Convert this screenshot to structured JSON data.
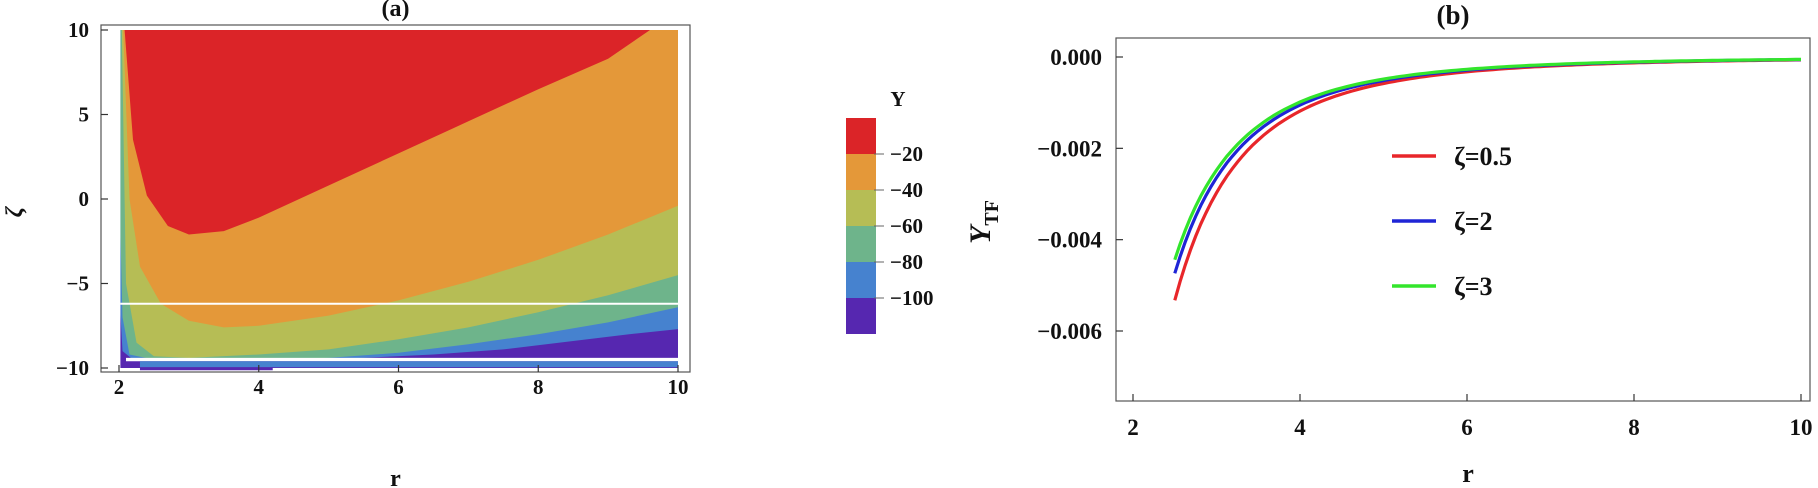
{
  "chart_data": [
    {
      "type": "contour",
      "title": "(a)",
      "xlabel": "r",
      "ylabel": "ζ",
      "xlim": [
        2,
        10
      ],
      "ylim": [
        -10,
        10
      ],
      "xticks": [
        "2",
        "4",
        "6",
        "8",
        "10"
      ],
      "yticks": [
        "−10",
        "−5",
        "0",
        "5",
        "10"
      ],
      "legend_title": "Υ",
      "legend_position": "right",
      "levels": [
        "−20",
        "−40",
        "−60",
        "−80",
        "−100"
      ],
      "colors": [
        "#db2428",
        "#e49839",
        "#b6bd55",
        "#6eb48b",
        "#4682cf",
        "#5627b0"
      ],
      "boundaries": [
        {
          "level": "−20",
          "points": [
            [
              2.08,
              10
            ],
            [
              2.2,
              3.5
            ],
            [
              2.4,
              0.2
            ],
            [
              2.7,
              -1.6
            ],
            [
              3.0,
              -2.1
            ],
            [
              3.5,
              -1.9
            ],
            [
              4.0,
              -1.1
            ],
            [
              5.0,
              0.8
            ],
            [
              6.0,
              2.7
            ],
            [
              7.0,
              4.6
            ],
            [
              8.0,
              6.5
            ],
            [
              9.0,
              8.3
            ],
            [
              9.6,
              10
            ]
          ]
        },
        {
          "level": "−40",
          "points": [
            [
              2.06,
              10
            ],
            [
              2.15,
              0
            ],
            [
              2.3,
              -4
            ],
            [
              2.6,
              -6.2
            ],
            [
              3.0,
              -7.2
            ],
            [
              3.5,
              -7.6
            ],
            [
              4.0,
              -7.5
            ],
            [
              5.0,
              -6.9
            ],
            [
              6.0,
              -6.0
            ],
            [
              7.0,
              -4.9
            ],
            [
              8.0,
              -3.6
            ],
            [
              9.0,
              -2.1
            ],
            [
              10,
              -0.4
            ]
          ]
        },
        {
          "level": "−60",
          "points": [
            [
              2.04,
              10
            ],
            [
              2.1,
              -5
            ],
            [
              2.25,
              -8.5
            ],
            [
              2.5,
              -9.3
            ],
            [
              3.0,
              -9.4
            ],
            [
              4.0,
              -9.2
            ],
            [
              5.0,
              -8.9
            ],
            [
              6.0,
              -8.3
            ],
            [
              7.0,
              -7.6
            ],
            [
              8.0,
              -6.7
            ],
            [
              9.0,
              -5.7
            ],
            [
              10,
              -4.5
            ]
          ]
        },
        {
          "level": "−80",
          "points": [
            [
              2.02,
              -2
            ],
            [
              2.05,
              -7
            ],
            [
              2.15,
              -9.2
            ],
            [
              2.5,
              -9.5
            ],
            [
              4.0,
              -9.5
            ],
            [
              5.0,
              -9.4
            ],
            [
              6.0,
              -9.1
            ],
            [
              7.0,
              -8.6
            ],
            [
              8.0,
              -8.0
            ],
            [
              9.0,
              -7.3
            ],
            [
              10,
              -6.4
            ]
          ]
        },
        {
          "level": "−100",
          "points": [
            [
              2.01,
              -6
            ],
            [
              2.05,
              -9.0
            ],
            [
              2.2,
              -9.5
            ],
            [
              4.5,
              -9.5
            ],
            [
              5.5,
              -9.4
            ],
            [
              6.5,
              -9.2
            ],
            [
              7.5,
              -8.9
            ],
            [
              8.5,
              -8.4
            ],
            [
              9.3,
              -8.0
            ],
            [
              10,
              -7.7
            ]
          ]
        }
      ],
      "gap_y": [
        -9.6,
        -9.4
      ],
      "white_line_y": -6.2
    },
    {
      "type": "line",
      "title": "(b)",
      "xlabel": "r",
      "ylabel": "Υ",
      "ylabel_sub": "TF",
      "xlim": [
        2,
        10
      ],
      "ylim": [
        -0.0078,
        0.0003
      ],
      "xticks": [
        "2",
        "4",
        "6",
        "8",
        "10"
      ],
      "yticks": [
        "0.000",
        "−0.002",
        "−0.004",
        "−0.006"
      ],
      "legend_position": "center",
      "series": [
        {
          "name": "ζ=0.5",
          "color": "#e8262a",
          "A": -0.1,
          "x": [
            2.5,
            10
          ]
        },
        {
          "name": "ζ=2",
          "color": "#1f25d6",
          "A": -0.0889,
          "x": [
            2.5,
            10
          ]
        },
        {
          "name": "ζ=3",
          "color": "#33e52c",
          "A": -0.0833,
          "x": [
            2.5,
            10
          ]
        }
      ]
    }
  ]
}
